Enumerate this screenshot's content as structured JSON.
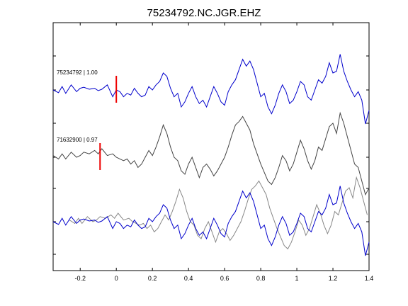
{
  "chart_data": {
    "type": "line",
    "title": "75234792.NC.JGR.EHZ",
    "xlim": [
      -0.35,
      1.4
    ],
    "xticks": [
      -0.2,
      0,
      0.2,
      0.4,
      0.6,
      0.8,
      1,
      1.2,
      1.4
    ],
    "xtick_labels": [
      "-0.2",
      "0",
      "0.2",
      "0.4",
      "0.6",
      "0.8",
      "1",
      "1.2",
      "1.4"
    ],
    "grid": false,
    "colors": {
      "primary": "#0000cc",
      "secondary": "#444444",
      "overlay_secondary": "#888888",
      "pick": "#ee0000"
    },
    "traces": [
      {
        "label": "75234792 | 1.00",
        "pick_time": 0.0,
        "color": "#0000cc",
        "offset": 0,
        "x": [
          -0.35,
          -0.32,
          -0.3,
          -0.28,
          -0.25,
          -0.22,
          -0.2,
          -0.18,
          -0.15,
          -0.12,
          -0.1,
          -0.08,
          -0.05,
          -0.02,
          0.0,
          0.02,
          0.04,
          0.06,
          0.08,
          0.1,
          0.12,
          0.14,
          0.16,
          0.18,
          0.2,
          0.22,
          0.24,
          0.26,
          0.28,
          0.3,
          0.32,
          0.34,
          0.36,
          0.38,
          0.4,
          0.42,
          0.44,
          0.46,
          0.48,
          0.5,
          0.52,
          0.54,
          0.56,
          0.58,
          0.6,
          0.62,
          0.64,
          0.66,
          0.68,
          0.7,
          0.72,
          0.74,
          0.76,
          0.78,
          0.8,
          0.82,
          0.84,
          0.86,
          0.88,
          0.9,
          0.92,
          0.94,
          0.96,
          0.98,
          1.0,
          1.02,
          1.04,
          1.06,
          1.08,
          1.1,
          1.12,
          1.14,
          1.16,
          1.18,
          1.2,
          1.22,
          1.24,
          1.26,
          1.28,
          1.3,
          1.32,
          1.34,
          1.36,
          1.38,
          1.4
        ],
        "y": [
          0,
          -0.08,
          0.1,
          -0.1,
          0.15,
          -0.05,
          0.05,
          0.08,
          0.02,
          0.05,
          -0.02,
          0.02,
          0.15,
          -0.2,
          0.0,
          -0.05,
          -0.2,
          -0.1,
          -0.15,
          0.05,
          -0.1,
          -0.2,
          -0.15,
          0.1,
          0.0,
          0.15,
          0.25,
          0.5,
          0.4,
          0.05,
          -0.2,
          -0.1,
          -0.5,
          -0.35,
          -0.1,
          0.1,
          -0.2,
          -0.4,
          -0.3,
          -0.5,
          -0.2,
          0.1,
          -0.1,
          -0.35,
          -0.45,
          -0.05,
          0.15,
          0.3,
          0.6,
          0.9,
          0.7,
          0.85,
          0.6,
          0.2,
          -0.2,
          -0.1,
          -0.5,
          -0.7,
          -0.45,
          -0.1,
          0.15,
          -0.05,
          -0.4,
          -0.3,
          -0.05,
          0.25,
          0.15,
          -0.2,
          -0.3,
          0.0,
          0.3,
          0.2,
          0.4,
          0.8,
          0.5,
          0.55,
          1.05,
          0.55,
          0.25,
          0.0,
          -0.2,
          -0.05,
          -0.3,
          -1.0,
          -0.6
        ]
      },
      {
        "label": "71632900 | 0.97",
        "pick_time": -0.09,
        "color": "#444444",
        "offset": -0.05,
        "x": [
          -0.35,
          -0.32,
          -0.3,
          -0.28,
          -0.25,
          -0.22,
          -0.2,
          -0.18,
          -0.15,
          -0.12,
          -0.1,
          -0.08,
          -0.05,
          -0.02,
          0.0,
          0.02,
          0.04,
          0.06,
          0.08,
          0.1,
          0.12,
          0.14,
          0.16,
          0.18,
          0.2,
          0.22,
          0.24,
          0.26,
          0.28,
          0.3,
          0.32,
          0.34,
          0.36,
          0.38,
          0.4,
          0.42,
          0.44,
          0.46,
          0.48,
          0.5,
          0.52,
          0.54,
          0.56,
          0.58,
          0.6,
          0.62,
          0.64,
          0.66,
          0.68,
          0.7,
          0.72,
          0.74,
          0.76,
          0.78,
          0.8,
          0.82,
          0.84,
          0.86,
          0.88,
          0.9,
          0.92,
          0.94,
          0.96,
          0.98,
          1.0,
          1.02,
          1.04,
          1.06,
          1.08,
          1.1,
          1.12,
          1.14,
          1.16,
          1.18,
          1.2,
          1.22,
          1.24,
          1.26,
          1.28,
          1.3,
          1.32,
          1.34,
          1.36,
          1.38,
          1.4
        ],
        "y": [
          0.05,
          -0.05,
          0.1,
          -0.05,
          0.15,
          0.0,
          0.05,
          0.15,
          0.1,
          0.2,
          0.1,
          0.25,
          0.05,
          0.1,
          0.0,
          -0.05,
          -0.1,
          -0.05,
          -0.2,
          -0.1,
          -0.3,
          -0.2,
          0.0,
          0.2,
          0.05,
          0.3,
          0.6,
          0.95,
          0.7,
          0.3,
          0.0,
          -0.1,
          -0.4,
          -0.5,
          -0.2,
          0.0,
          -0.3,
          -0.6,
          -0.3,
          -0.2,
          -0.35,
          -0.55,
          -0.4,
          -0.2,
          0.0,
          0.3,
          0.65,
          0.95,
          1.05,
          1.2,
          1.0,
          0.8,
          0.4,
          0.1,
          -0.2,
          -0.45,
          -0.7,
          -0.8,
          -0.6,
          -0.3,
          0.05,
          -0.1,
          -0.4,
          -0.2,
          0.15,
          0.5,
          0.25,
          -0.1,
          -0.35,
          -0.1,
          0.3,
          0.2,
          0.55,
          0.9,
          1.0,
          0.7,
          1.3,
          1.0,
          0.6,
          0.2,
          -0.2,
          -0.3,
          -0.7,
          -1.1,
          -0.9
        ]
      }
    ]
  }
}
